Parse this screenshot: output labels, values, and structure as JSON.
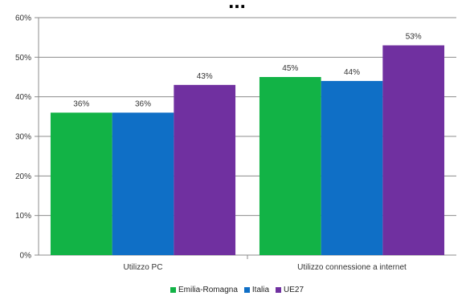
{
  "chart_data": {
    "type": "bar",
    "title": "...",
    "categories": [
      "Utilizzo PC",
      "Utilizzo connessione a internet"
    ],
    "series": [
      {
        "name": "Emilia-Romagna",
        "values": [
          36,
          45
        ],
        "labels": [
          "36%",
          "45%"
        ],
        "color": "#12b346"
      },
      {
        "name": "Italia",
        "values": [
          36,
          44
        ],
        "labels": [
          "36%",
          "44%"
        ],
        "color": "#0f6fc6"
      },
      {
        "name": "UE27",
        "values": [
          43,
          53
        ],
        "labels": [
          "43%",
          "53%"
        ],
        "color": "#7030a0"
      }
    ],
    "ylim": [
      0,
      60
    ],
    "yticks": [
      0,
      10,
      20,
      30,
      40,
      50,
      60
    ],
    "ytick_labels": [
      "0%",
      "10%",
      "20%",
      "30%",
      "40%",
      "50%",
      "60%"
    ],
    "grid": true,
    "legend_position": "bottom"
  }
}
